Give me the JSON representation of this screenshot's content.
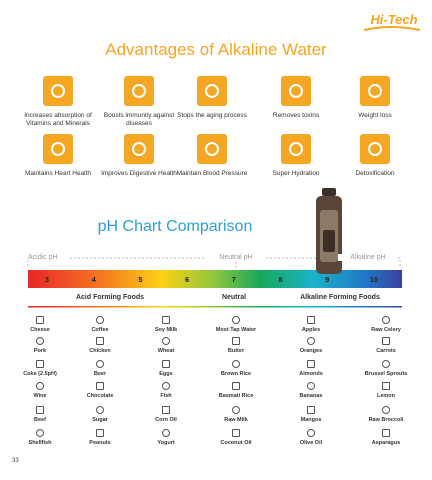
{
  "logo": "Hi-Tech",
  "title": "Advantages of Alkaline Water",
  "benefits": [
    "Increases absorption of Vitamins and Minerals",
    "Boosts immunity against diseases",
    "Stops the aging process",
    "Removes toxins",
    "Weight loss",
    "Maintains Heart Health",
    "Improves Digestive Health",
    "Maintain Blood Pressure",
    "Super Hydration",
    "Detoxification"
  ],
  "ph_chart": {
    "title": "pH Chart Comparison",
    "ranges": [
      "Acidic pH",
      "Neutral pH",
      "Alkaline pH"
    ],
    "scale": [
      3,
      4,
      5,
      6,
      7,
      8,
      9,
      10
    ],
    "groups": [
      "Acid Forming Foods",
      "Neutral",
      "Alkaline Forming Foods"
    ],
    "foods": [
      [
        "Cheese",
        "Pork",
        "Coke (2.5pH)",
        "Wine",
        "Beef",
        "Shellfish"
      ],
      [
        "Coffee",
        "Chicken",
        "Beer",
        "Chocolate",
        "Sugar",
        "Peanuts"
      ],
      [
        "Soy Milk",
        "Wheat",
        "Eggs",
        "Fish",
        "Corn Oil",
        "Yogurt"
      ],
      [
        "Most Tap Water",
        "Butter",
        "Brown Rice",
        "Basmati Rice",
        "Raw Milk",
        "Coconut Oil"
      ],
      [
        "Apples",
        "Oranges",
        "Almonds",
        "Bananas",
        "Mangos",
        "Olive Oil"
      ],
      [
        "Raw Celery",
        "Carrots",
        "Brussel Sprouts",
        "Lemon",
        "Raw Broccoli",
        "Asparagus"
      ]
    ]
  },
  "page_number": "33"
}
